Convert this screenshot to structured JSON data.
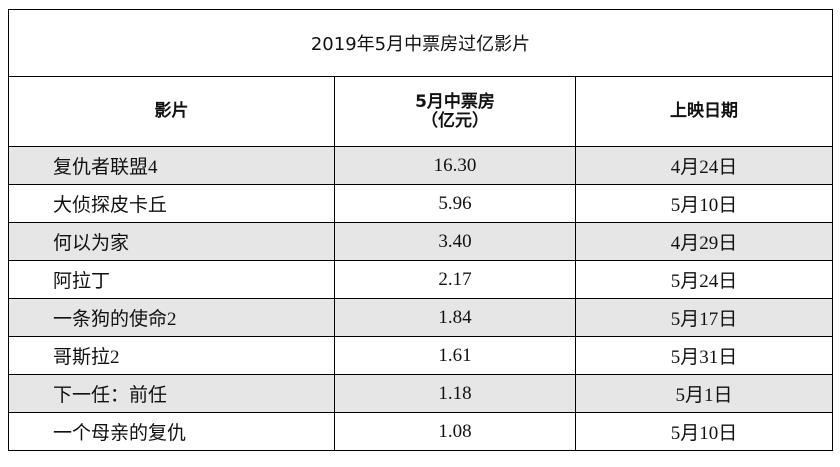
{
  "table": {
    "title": "2019年5月中票房过亿影片",
    "headers": {
      "film": "影片",
      "box_office_line1": "5月中票房",
      "box_office_line2": "（亿元）",
      "release_date": "上映日期"
    },
    "rows": [
      {
        "film": "复仇者联盟4",
        "box_office": "16.30",
        "release_date": "4月24日",
        "shaded": true
      },
      {
        "film": "大侦探皮卡丘",
        "box_office": "5.96",
        "release_date": "5月10日",
        "shaded": false
      },
      {
        "film": "何以为家",
        "box_office": "3.40",
        "release_date": "4月29日",
        "shaded": true
      },
      {
        "film": "阿拉丁",
        "box_office": "2.17",
        "release_date": "5月24日",
        "shaded": false
      },
      {
        "film": "一条狗的使命2",
        "box_office": "1.84",
        "release_date": "5月17日",
        "shaded": true
      },
      {
        "film": "哥斯拉2",
        "box_office": "1.61",
        "release_date": "5月31日",
        "shaded": false
      },
      {
        "film": "下一任：前任",
        "box_office": "1.18",
        "release_date": "5月1日",
        "shaded": true
      },
      {
        "film": "一个母亲的复仇",
        "box_office": "1.08",
        "release_date": "5月10日",
        "shaded": false
      }
    ]
  }
}
